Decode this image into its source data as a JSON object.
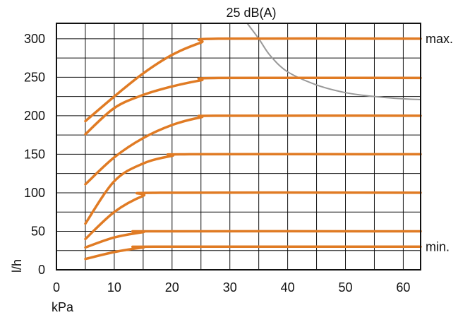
{
  "chart_data": {
    "type": "line",
    "title": "",
    "xlabel": "kPa",
    "ylabel": "l/h",
    "xlim": [
      0,
      63
    ],
    "ylim": [
      0,
      320
    ],
    "x_ticks": [
      0,
      10,
      20,
      30,
      40,
      50,
      60
    ],
    "y_ticks": [
      0,
      50,
      100,
      150,
      200,
      250,
      300
    ],
    "x_gridlines": [
      0,
      5,
      10,
      15,
      20,
      25,
      30,
      35,
      40,
      45,
      50,
      55,
      60
    ],
    "y_gridlines": [
      25,
      50,
      75,
      100,
      125,
      150,
      175,
      200,
      225,
      250,
      275,
      300
    ],
    "grid": true,
    "series_color": "#e07b24",
    "noise_color": "#999999",
    "series": [
      {
        "points": [
          [
            5,
            193
          ],
          [
            10,
            225
          ],
          [
            15,
            255
          ],
          [
            20,
            279
          ],
          [
            25,
            295
          ],
          [
            28,
            300
          ],
          [
            63,
            300
          ]
        ]
      },
      {
        "points": [
          [
            5,
            176
          ],
          [
            10,
            210
          ],
          [
            15,
            227
          ],
          [
            20,
            238
          ],
          [
            25,
            246
          ],
          [
            28,
            249
          ],
          [
            63,
            249
          ]
        ]
      },
      {
        "points": [
          [
            5,
            111
          ],
          [
            10,
            146
          ],
          [
            15,
            171
          ],
          [
            20,
            188
          ],
          [
            25,
            198
          ],
          [
            28,
            200
          ],
          [
            63,
            200
          ]
        ]
      },
      {
        "points": [
          [
            5,
            60
          ],
          [
            10,
            115
          ],
          [
            15,
            138
          ],
          [
            20,
            148
          ],
          [
            23,
            150
          ],
          [
            63,
            150
          ]
        ]
      },
      {
        "points": [
          [
            5,
            40
          ],
          [
            10,
            75
          ],
          [
            15,
            96
          ],
          [
            18,
            100
          ],
          [
            63,
            100
          ]
        ]
      },
      {
        "points": [
          [
            5,
            29
          ],
          [
            10,
            42
          ],
          [
            15,
            49
          ],
          [
            17,
            50
          ],
          [
            63,
            50
          ]
        ]
      },
      {
        "points": [
          [
            5,
            14
          ],
          [
            10,
            23
          ],
          [
            15,
            29
          ],
          [
            17,
            30
          ],
          [
            63,
            30
          ]
        ]
      }
    ],
    "noise_curve": {
      "label": "25 dB(A)",
      "points": [
        [
          33,
          320
        ],
        [
          35,
          300
        ],
        [
          37,
          278
        ],
        [
          40,
          257
        ],
        [
          45,
          240
        ],
        [
          50,
          230
        ],
        [
          55,
          225
        ],
        [
          60,
          222
        ],
        [
          63,
          221
        ]
      ]
    },
    "annotations": [
      {
        "text": "max.",
        "y": 300
      },
      {
        "text": "min.",
        "y": 30
      }
    ]
  }
}
